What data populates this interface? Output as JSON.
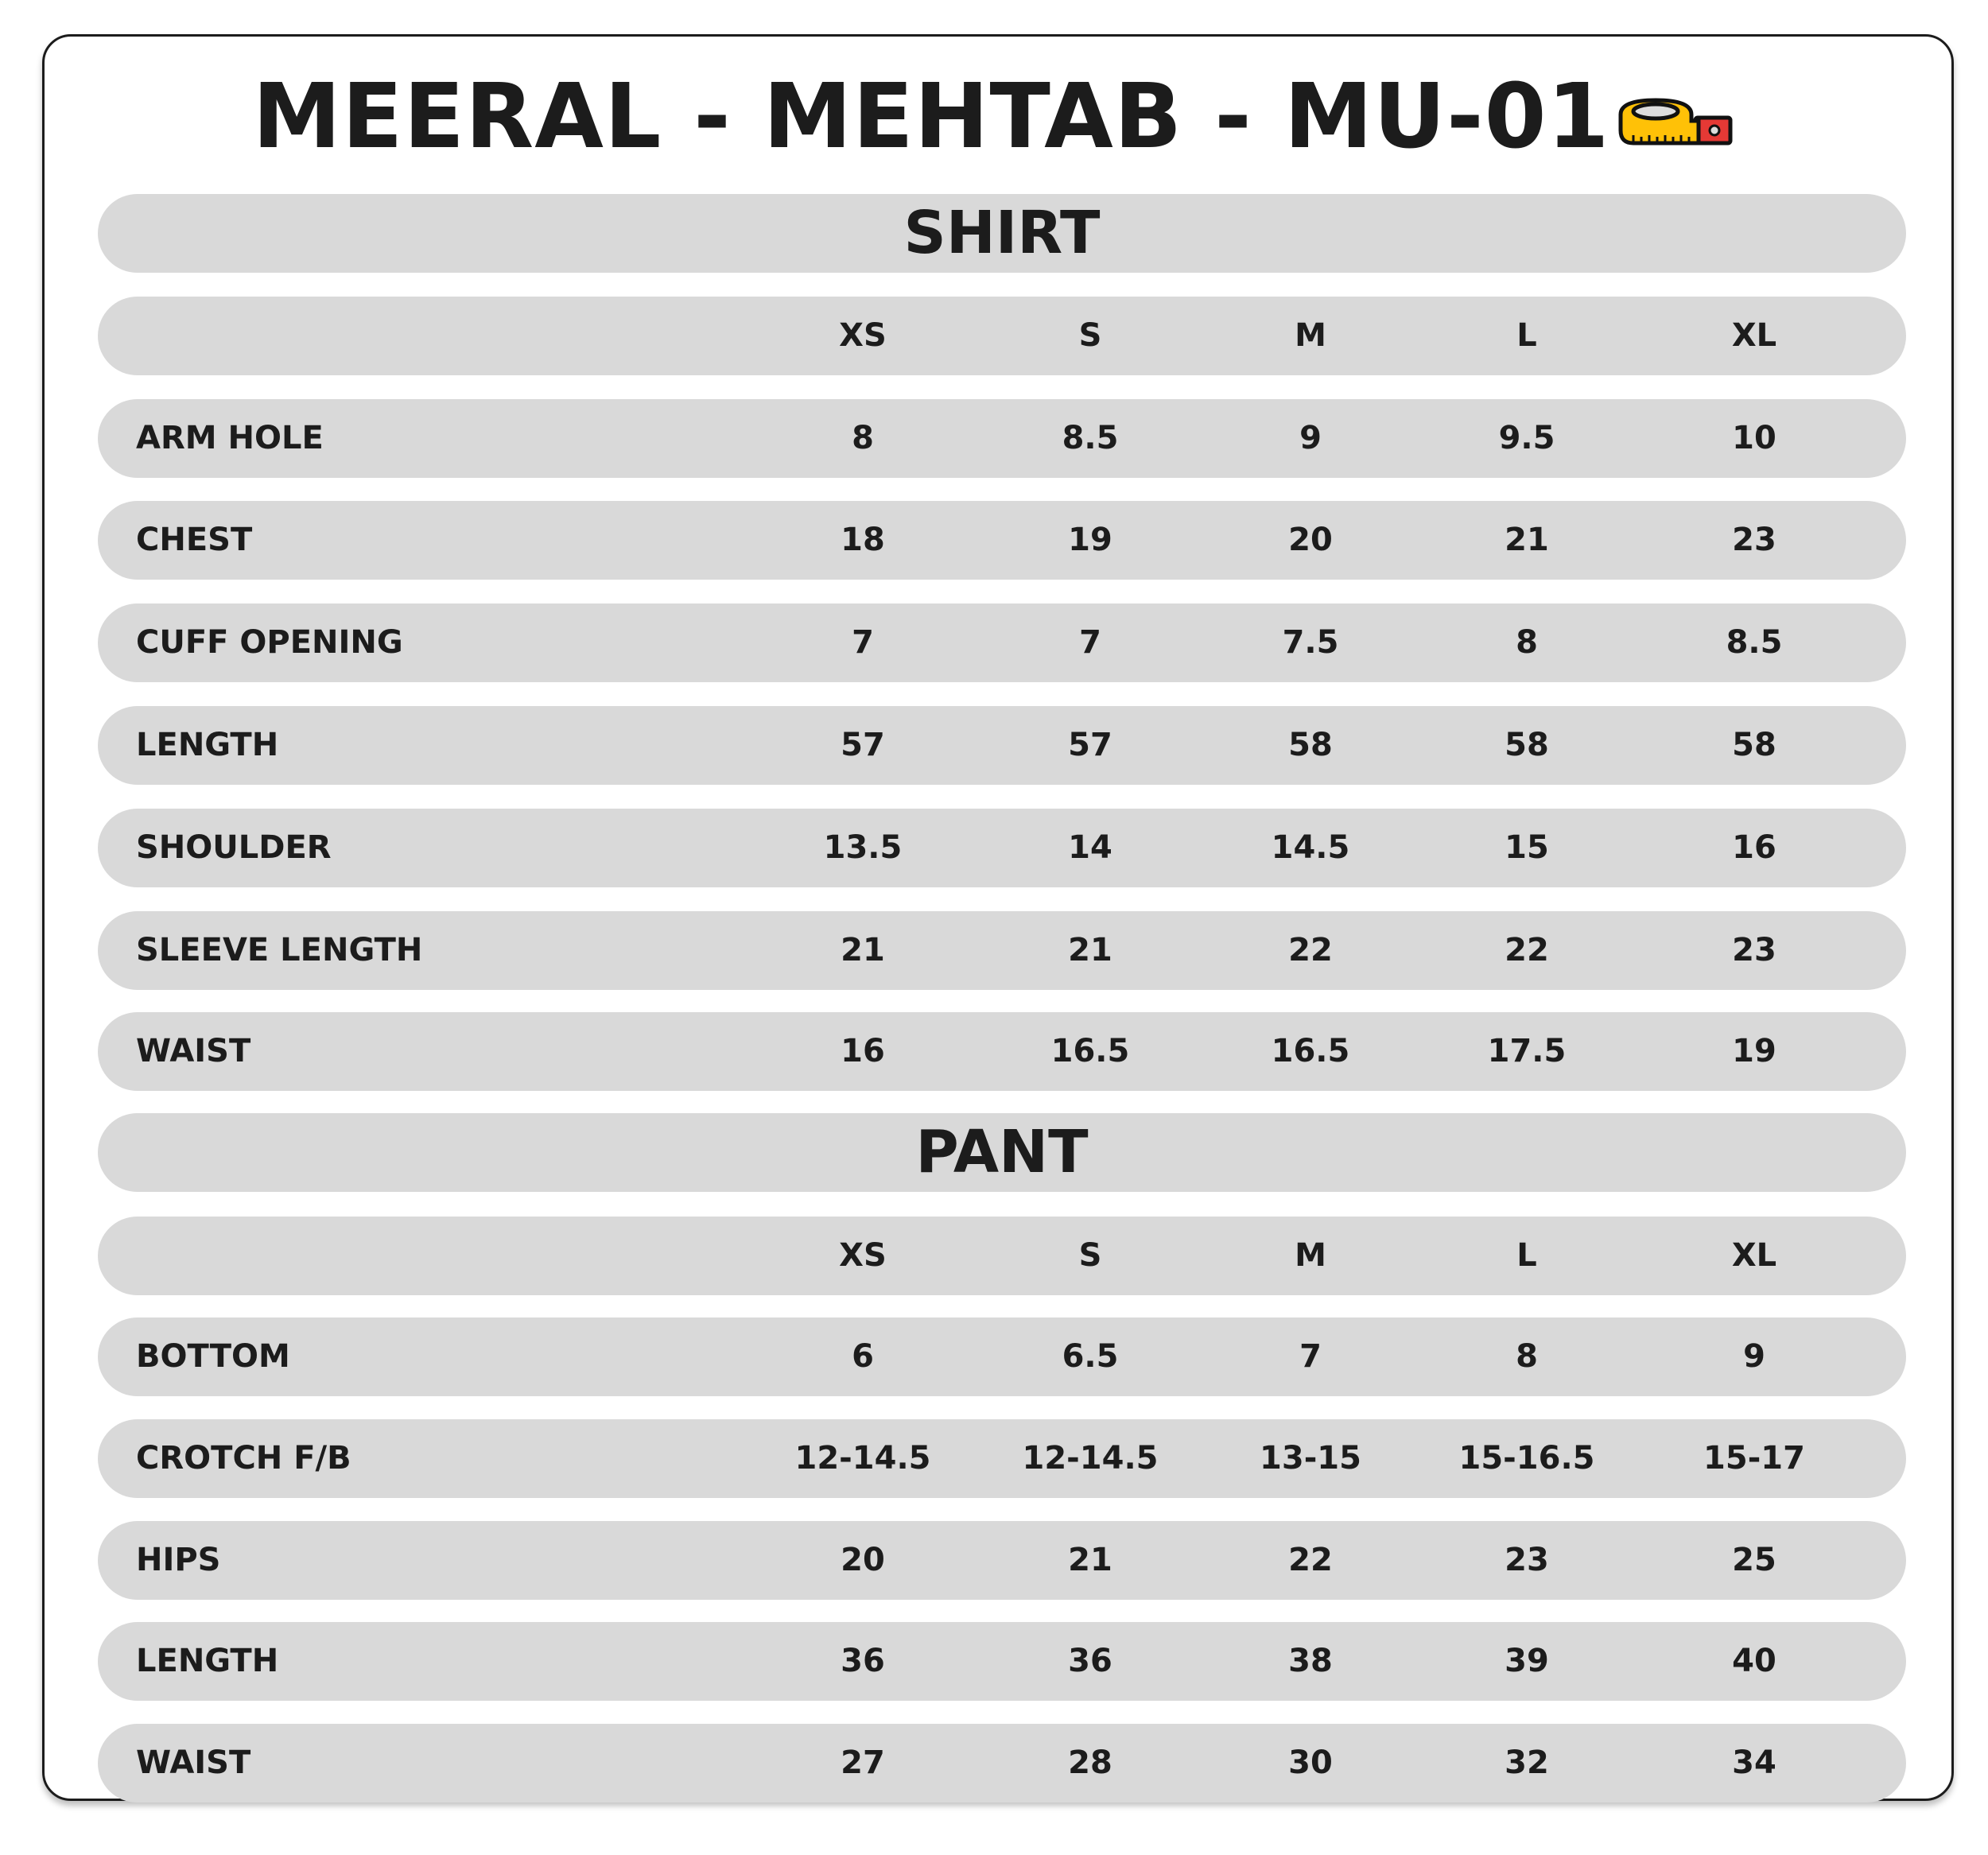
{
  "title": "MEERAL - MEHTAB - MU-01",
  "title_icon": "measuring-tape-icon",
  "colors": {
    "row_background": "#d9d9d9",
    "text": "#1c1c1c",
    "tape_yellow": "#ffc107",
    "tape_red": "#e53935"
  },
  "sections": [
    {
      "title": "SHIRT",
      "sizes": [
        "XS",
        "S",
        "M",
        "L",
        "XL"
      ],
      "rows": [
        {
          "label": "ARM HOLE",
          "values": [
            "8",
            "8.5",
            "9",
            "9.5",
            "10"
          ]
        },
        {
          "label": "CHEST",
          "values": [
            "18",
            "19",
            "20",
            "21",
            "23"
          ]
        },
        {
          "label": "CUFF OPENING",
          "values": [
            "7",
            "7",
            "7.5",
            "8",
            "8.5"
          ]
        },
        {
          "label": "LENGTH",
          "values": [
            "57",
            "57",
            "58",
            "58",
            "58"
          ]
        },
        {
          "label": "SHOULDER",
          "values": [
            "13.5",
            "14",
            "14.5",
            "15",
            "16"
          ]
        },
        {
          "label": "SLEEVE LENGTH",
          "values": [
            "21",
            "21",
            "22",
            "22",
            "23"
          ]
        },
        {
          "label": "WAIST",
          "values": [
            "16",
            "16.5",
            "16.5",
            "17.5",
            "19"
          ]
        }
      ]
    },
    {
      "title": "PANT",
      "sizes": [
        "XS",
        "S",
        "M",
        "L",
        "XL"
      ],
      "rows": [
        {
          "label": "BOTTOM",
          "values": [
            "6",
            "6.5",
            "7",
            "8",
            "9"
          ]
        },
        {
          "label": "CROTCH F/B",
          "values": [
            "12-14.5",
            "12-14.5",
            "13-15",
            "15-16.5",
            "15-17"
          ]
        },
        {
          "label": "HIPS",
          "values": [
            "20",
            "21",
            "22",
            "23",
            "25"
          ]
        },
        {
          "label": "LENGTH",
          "values": [
            "36",
            "36",
            "38",
            "39",
            "40"
          ]
        },
        {
          "label": "WAIST",
          "values": [
            "27",
            "28",
            "30",
            "32",
            "34"
          ]
        }
      ]
    }
  ]
}
